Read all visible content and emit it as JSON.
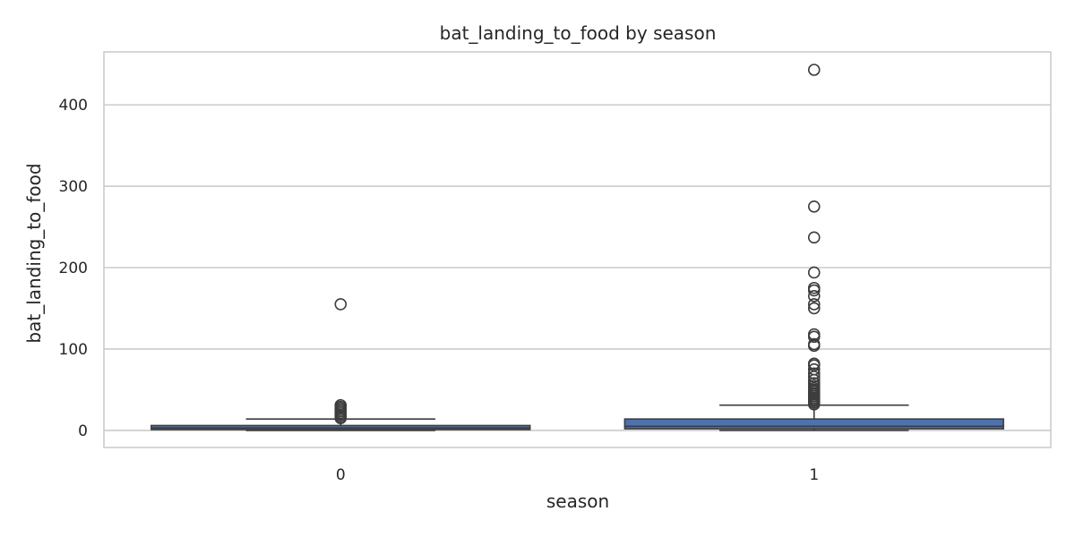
{
  "chart_data": {
    "type": "box",
    "title": "bat_landing_to_food by season",
    "xlabel": "season",
    "ylabel": "bat_landing_to_food",
    "categories": [
      "0",
      "1"
    ],
    "ylim": [
      -21,
      465
    ],
    "yticks": [
      0,
      100,
      200,
      300,
      400
    ],
    "ytick_labels": [
      "0",
      "100",
      "200",
      "300",
      "400"
    ],
    "grid": true,
    "box_color": "#4c72b0",
    "line_color": "#3d3d3d",
    "boxes": [
      {
        "category": "0",
        "whisker_low": 0,
        "q1": 1,
        "median": 3,
        "q3": 6,
        "whisker_high": 14,
        "outliers": [
          15,
          17,
          19,
          21,
          23,
          25,
          27,
          29,
          31,
          155
        ]
      },
      {
        "category": "1",
        "whisker_low": 0,
        "q1": 2,
        "median": 5,
        "q3": 14,
        "whisker_high": 31,
        "outliers": [
          32,
          34,
          36,
          38,
          40,
          42,
          44,
          46,
          48,
          50,
          52,
          55,
          58,
          62,
          66,
          70,
          75,
          80,
          82,
          104,
          106,
          115,
          118,
          150,
          155,
          165,
          172,
          175,
          194,
          237,
          275,
          443
        ]
      }
    ]
  }
}
